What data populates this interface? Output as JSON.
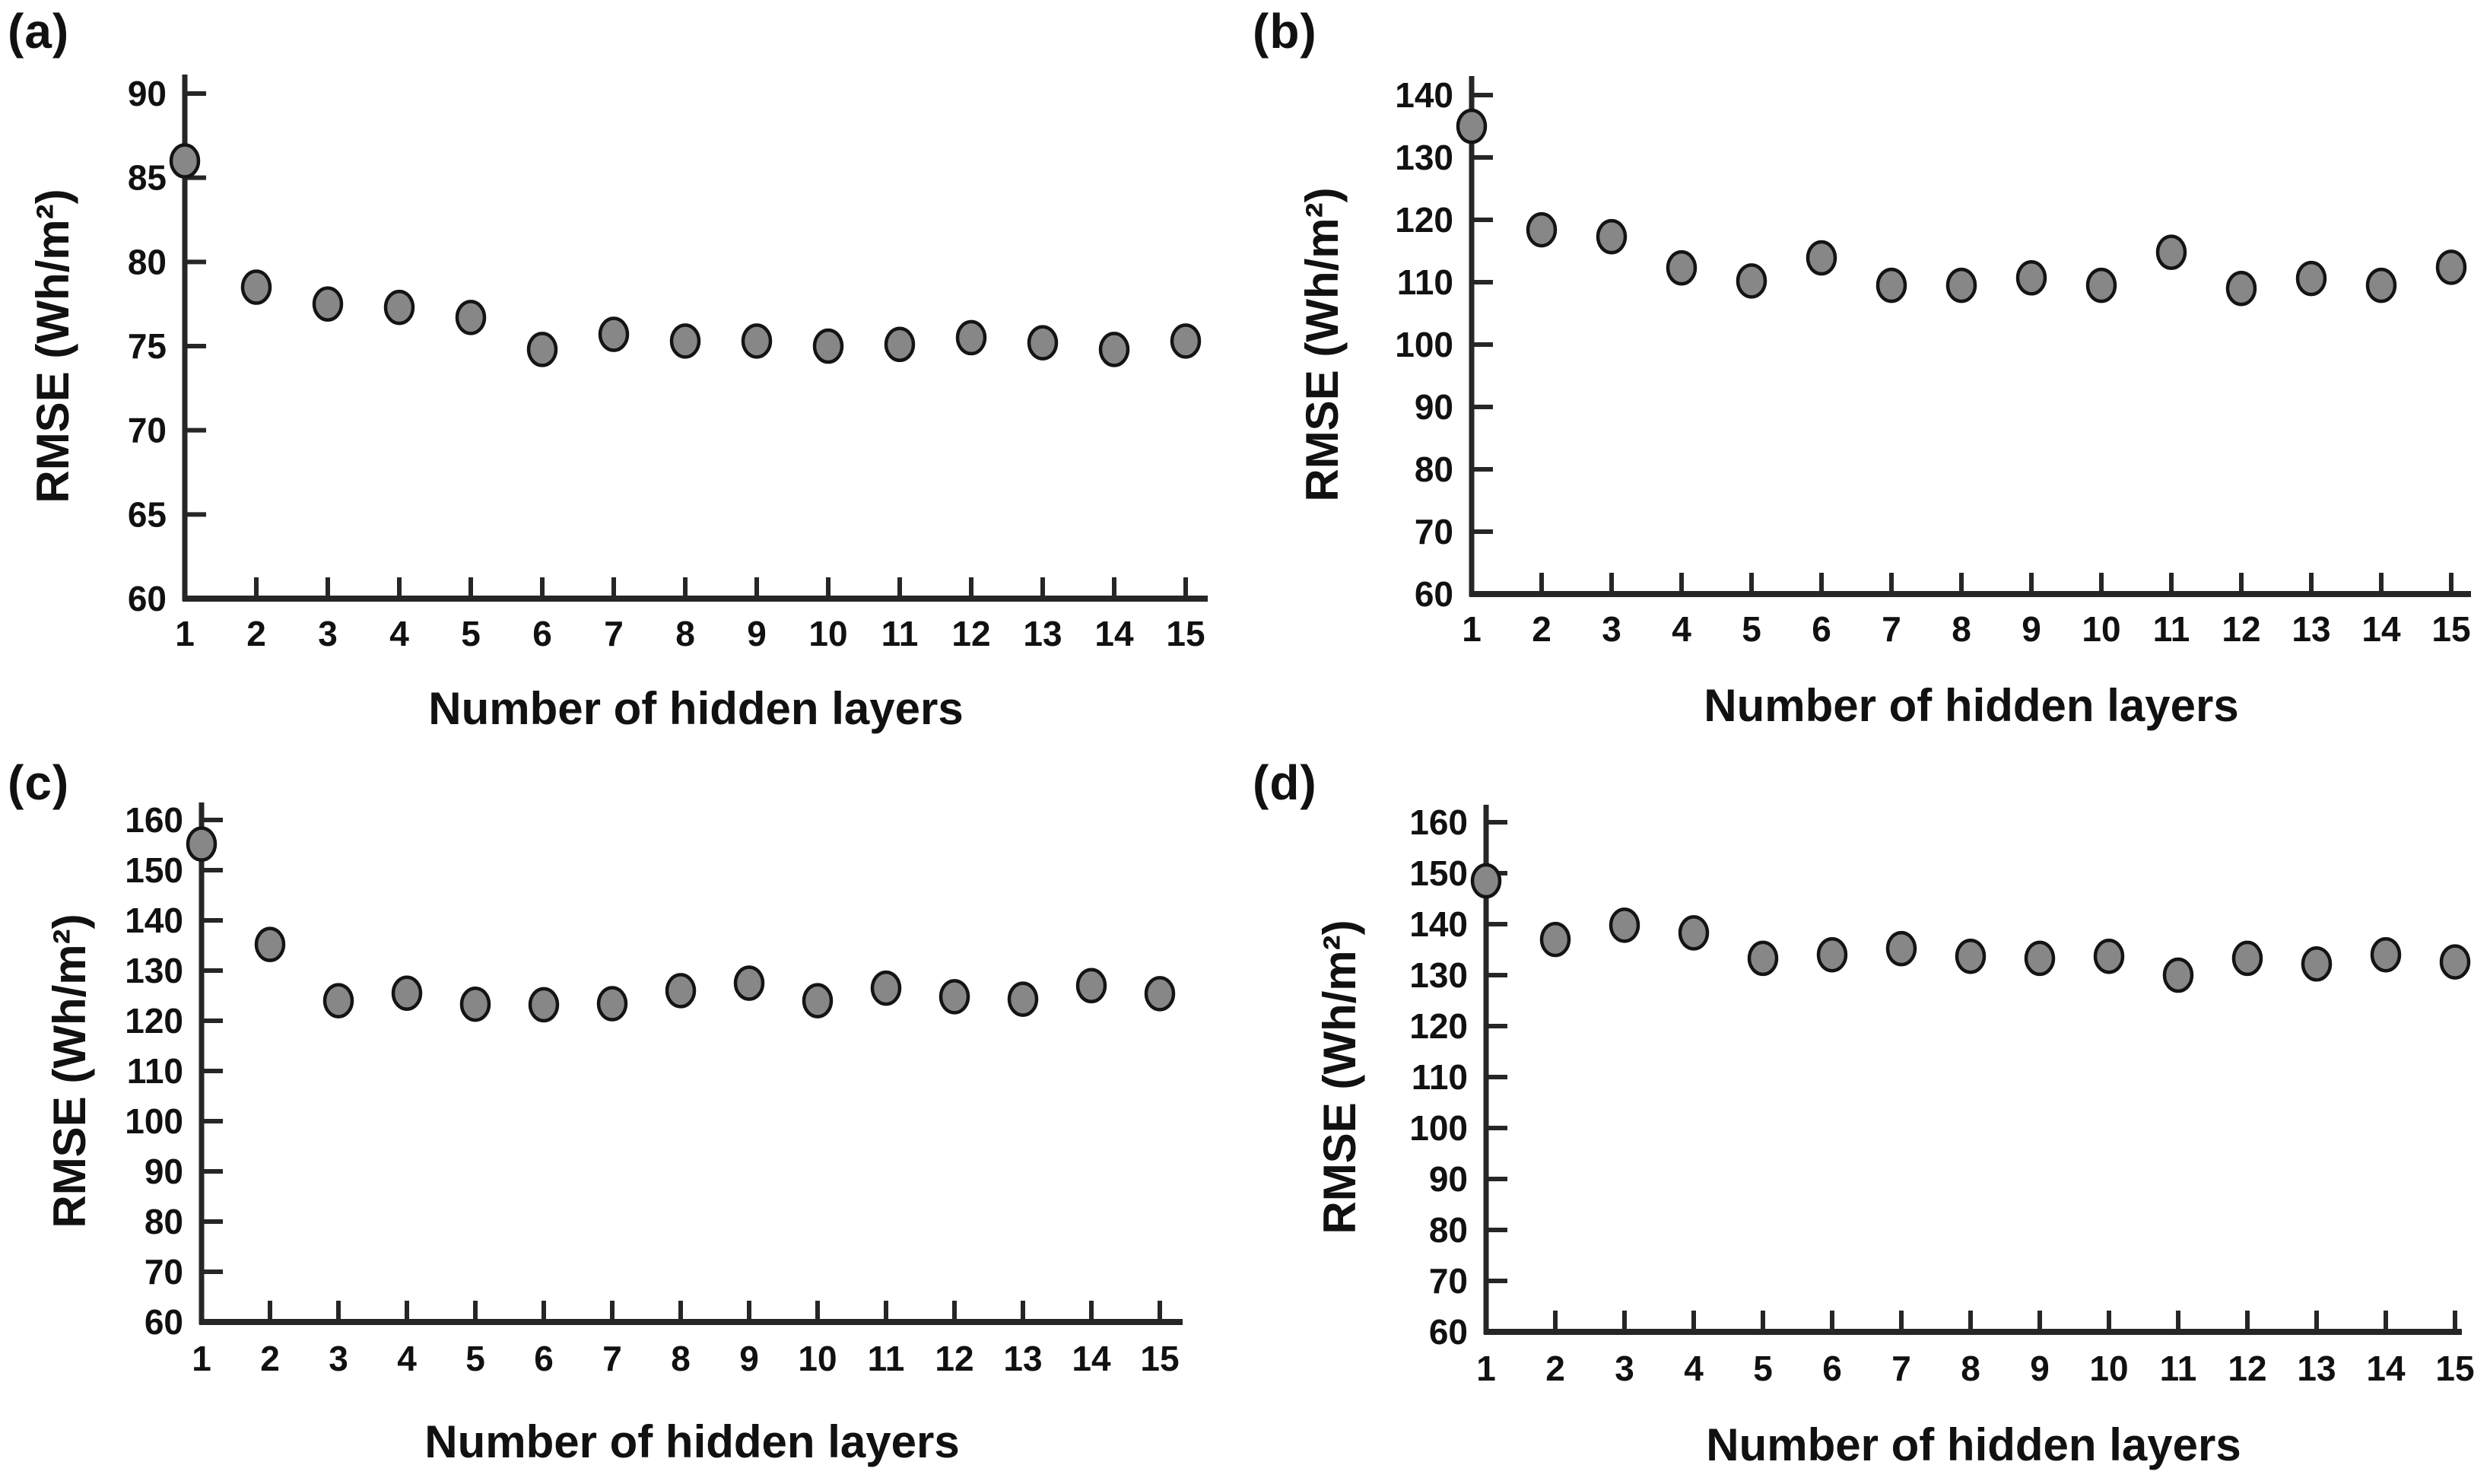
{
  "figure": {
    "background": "#ffffff",
    "marker_fill": "#878787",
    "marker_stroke": "#141414",
    "axis_color": "#262626",
    "text_color": "#111111"
  },
  "chart_data": [
    {
      "type": "scatter",
      "panel_label": "(a)",
      "title": "",
      "xlabel": "Number of hidden layers",
      "ylabel": "RMSE (Wh/m²)",
      "x": [
        1,
        2,
        3,
        4,
        5,
        6,
        7,
        8,
        9,
        10,
        11,
        12,
        13,
        14,
        15
      ],
      "y": [
        86.0,
        78.5,
        77.5,
        77.3,
        76.7,
        74.8,
        75.7,
        75.3,
        75.3,
        75.0,
        75.1,
        75.5,
        75.2,
        74.8,
        75.3
      ],
      "ylim": [
        60,
        90
      ],
      "yticks": [
        60,
        65,
        70,
        75,
        80,
        85,
        90
      ],
      "xticks": [
        1,
        2,
        3,
        4,
        5,
        6,
        7,
        8,
        9,
        10,
        11,
        12,
        13,
        14,
        15
      ],
      "grid": false,
      "legend": "none"
    },
    {
      "type": "scatter",
      "panel_label": "(b)",
      "title": "",
      "xlabel": "Number of hidden layers",
      "ylabel": "RMSE (Wh/m²)",
      "x": [
        1,
        2,
        3,
        4,
        5,
        6,
        7,
        8,
        9,
        10,
        11,
        12,
        13,
        14,
        15
      ],
      "y": [
        135.0,
        118.4,
        117.3,
        112.3,
        110.2,
        113.9,
        109.5,
        109.5,
        110.7,
        109.5,
        114.8,
        109.0,
        110.6,
        109.5,
        112.4
      ],
      "ylim": [
        60,
        140
      ],
      "yticks": [
        60,
        70,
        80,
        90,
        100,
        110,
        120,
        130,
        140
      ],
      "xticks": [
        1,
        2,
        3,
        4,
        5,
        6,
        7,
        8,
        9,
        10,
        11,
        12,
        13,
        14,
        15
      ],
      "grid": false,
      "legend": "none"
    },
    {
      "type": "scatter",
      "panel_label": "(c)",
      "title": "",
      "xlabel": "Number of hidden layers",
      "ylabel": "RMSE (Wh/m²)",
      "x": [
        1,
        2,
        3,
        4,
        5,
        6,
        7,
        8,
        9,
        10,
        11,
        12,
        13,
        14,
        15
      ],
      "y": [
        155.2,
        135.2,
        124.0,
        125.5,
        123.3,
        123.2,
        123.4,
        126.0,
        127.5,
        124.0,
        126.5,
        124.8,
        124.3,
        127.0,
        125.4
      ],
      "ylim": [
        60,
        160
      ],
      "yticks": [
        60,
        70,
        80,
        90,
        100,
        110,
        120,
        130,
        140,
        150,
        160
      ],
      "xticks": [
        1,
        2,
        3,
        4,
        5,
        6,
        7,
        8,
        9,
        10,
        11,
        12,
        13,
        14,
        15
      ],
      "grid": false,
      "legend": "none"
    },
    {
      "type": "scatter",
      "panel_label": "(d)",
      "title": "",
      "xlabel": "Number of hidden layers",
      "ylabel": "RMSE (Wh/m²)",
      "x": [
        1,
        2,
        3,
        4,
        5,
        6,
        7,
        8,
        9,
        10,
        11,
        12,
        13,
        14,
        15
      ],
      "y": [
        148.5,
        137.0,
        139.8,
        138.3,
        133.3,
        134.0,
        135.2,
        133.7,
        133.3,
        133.7,
        130.0,
        133.3,
        132.2,
        134.0,
        132.6
      ],
      "ylim": [
        60,
        160
      ],
      "yticks": [
        60,
        70,
        80,
        90,
        100,
        110,
        120,
        130,
        140,
        150,
        160
      ],
      "xticks": [
        1,
        2,
        3,
        4,
        5,
        6,
        7,
        8,
        9,
        10,
        11,
        12,
        13,
        14,
        15
      ],
      "grid": false,
      "legend": "none"
    }
  ]
}
